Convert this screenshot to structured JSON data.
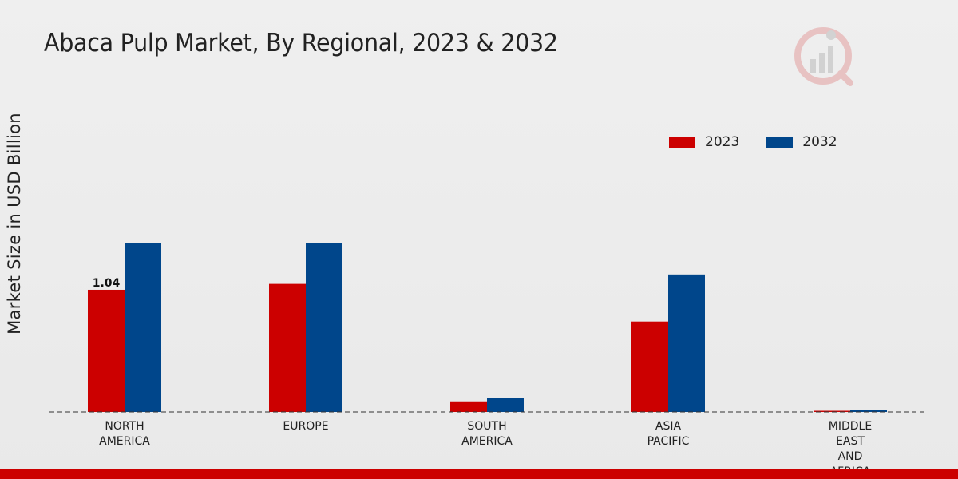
{
  "title": "Abaca Pulp Market, By Regional, 2023 & 2032",
  "chart_data": {
    "type": "bar",
    "title": "Abaca Pulp Market, By Regional, 2023 & 2032",
    "xlabel": "",
    "ylabel": "Market Size in USD Billion",
    "categories": [
      [
        "NORTH",
        "AMERICA"
      ],
      [
        "EUROPE"
      ],
      [
        "SOUTH",
        "AMERICA"
      ],
      [
        "ASIA",
        "PACIFIC"
      ],
      [
        "MIDDLE",
        "EAST",
        "AND",
        "AFRICA"
      ]
    ],
    "series": [
      {
        "name": "2023",
        "color": "#cc0000",
        "values": [
          1.04,
          1.09,
          0.09,
          0.77,
          0.005
        ]
      },
      {
        "name": "2032",
        "color": "#00468b",
        "values": [
          1.44,
          1.44,
          0.12,
          1.17,
          0.02
        ]
      }
    ],
    "data_labels": [
      {
        "series": 0,
        "index": 0,
        "text": "1.04"
      }
    ],
    "ylim": [
      0,
      2.8
    ],
    "grid": false,
    "legend_position": "top-right"
  }
}
